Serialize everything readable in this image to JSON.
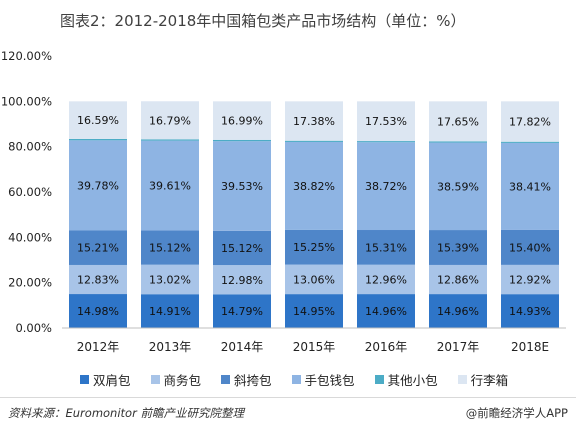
{
  "title": "图表2：2012-2018年中国箱包类产品市场结构（单位：%）",
  "source": "资料来源：Euromonitor  前瞻产业研究院整理",
  "brand": "@前瞻经济学人APP",
  "chart_data": {
    "type": "bar",
    "stacked": true,
    "categories": [
      "2012年",
      "2013年",
      "2014年",
      "2015年",
      "2016年",
      "2017年",
      "2018E"
    ],
    "ylim": [
      0,
      120
    ],
    "yticks": [
      "0.00%",
      "20.00%",
      "40.00%",
      "60.00%",
      "80.00%",
      "100.00%",
      "120.00%"
    ],
    "grid": false,
    "legend_position": "bottom",
    "series": [
      {
        "name": "双肩包",
        "color": "#2e75c8",
        "values": [
          14.98,
          14.91,
          14.79,
          14.95,
          14.96,
          14.96,
          14.93
        ],
        "labels": [
          "14.98%",
          "14.91%",
          "14.79%",
          "14.95%",
          "14.96%",
          "14.96%",
          "14.93%"
        ]
      },
      {
        "name": "商务包",
        "color": "#a8c4e8",
        "values": [
          12.83,
          13.02,
          12.98,
          13.06,
          12.96,
          12.86,
          12.92
        ],
        "labels": [
          "12.83%",
          "13.02%",
          "12.98%",
          "13.06%",
          "12.96%",
          "12.86%",
          "12.92%"
        ]
      },
      {
        "name": "斜挎包",
        "color": "#4f86c9",
        "values": [
          15.21,
          15.12,
          15.12,
          15.25,
          15.31,
          15.39,
          15.4
        ],
        "labels": [
          "15.21%",
          "15.12%",
          "15.12%",
          "15.25%",
          "15.31%",
          "15.39%",
          "15.40%"
        ]
      },
      {
        "name": "手包钱包",
        "color": "#8eb4e3",
        "values": [
          39.78,
          39.61,
          39.53,
          38.82,
          38.72,
          38.59,
          38.41
        ],
        "labels": [
          "39.78%",
          "39.61%",
          "39.53%",
          "38.82%",
          "38.72%",
          "38.59%",
          "38.41%"
        ]
      },
      {
        "name": "其他小包",
        "color": "#4cacc6",
        "values": [
          0.61,
          0.58,
          0.59,
          0.54,
          0.52,
          0.55,
          0.52
        ],
        "labels": [
          "",
          "",
          "",
          "",
          "",
          "",
          ""
        ]
      },
      {
        "name": "行李箱",
        "color": "#dce6f2",
        "values": [
          16.59,
          16.79,
          16.99,
          17.38,
          17.53,
          17.65,
          17.82
        ],
        "labels": [
          "16.59%",
          "16.79%",
          "16.99%",
          "17.38%",
          "17.53%",
          "17.65%",
          "17.82%"
        ]
      }
    ]
  }
}
